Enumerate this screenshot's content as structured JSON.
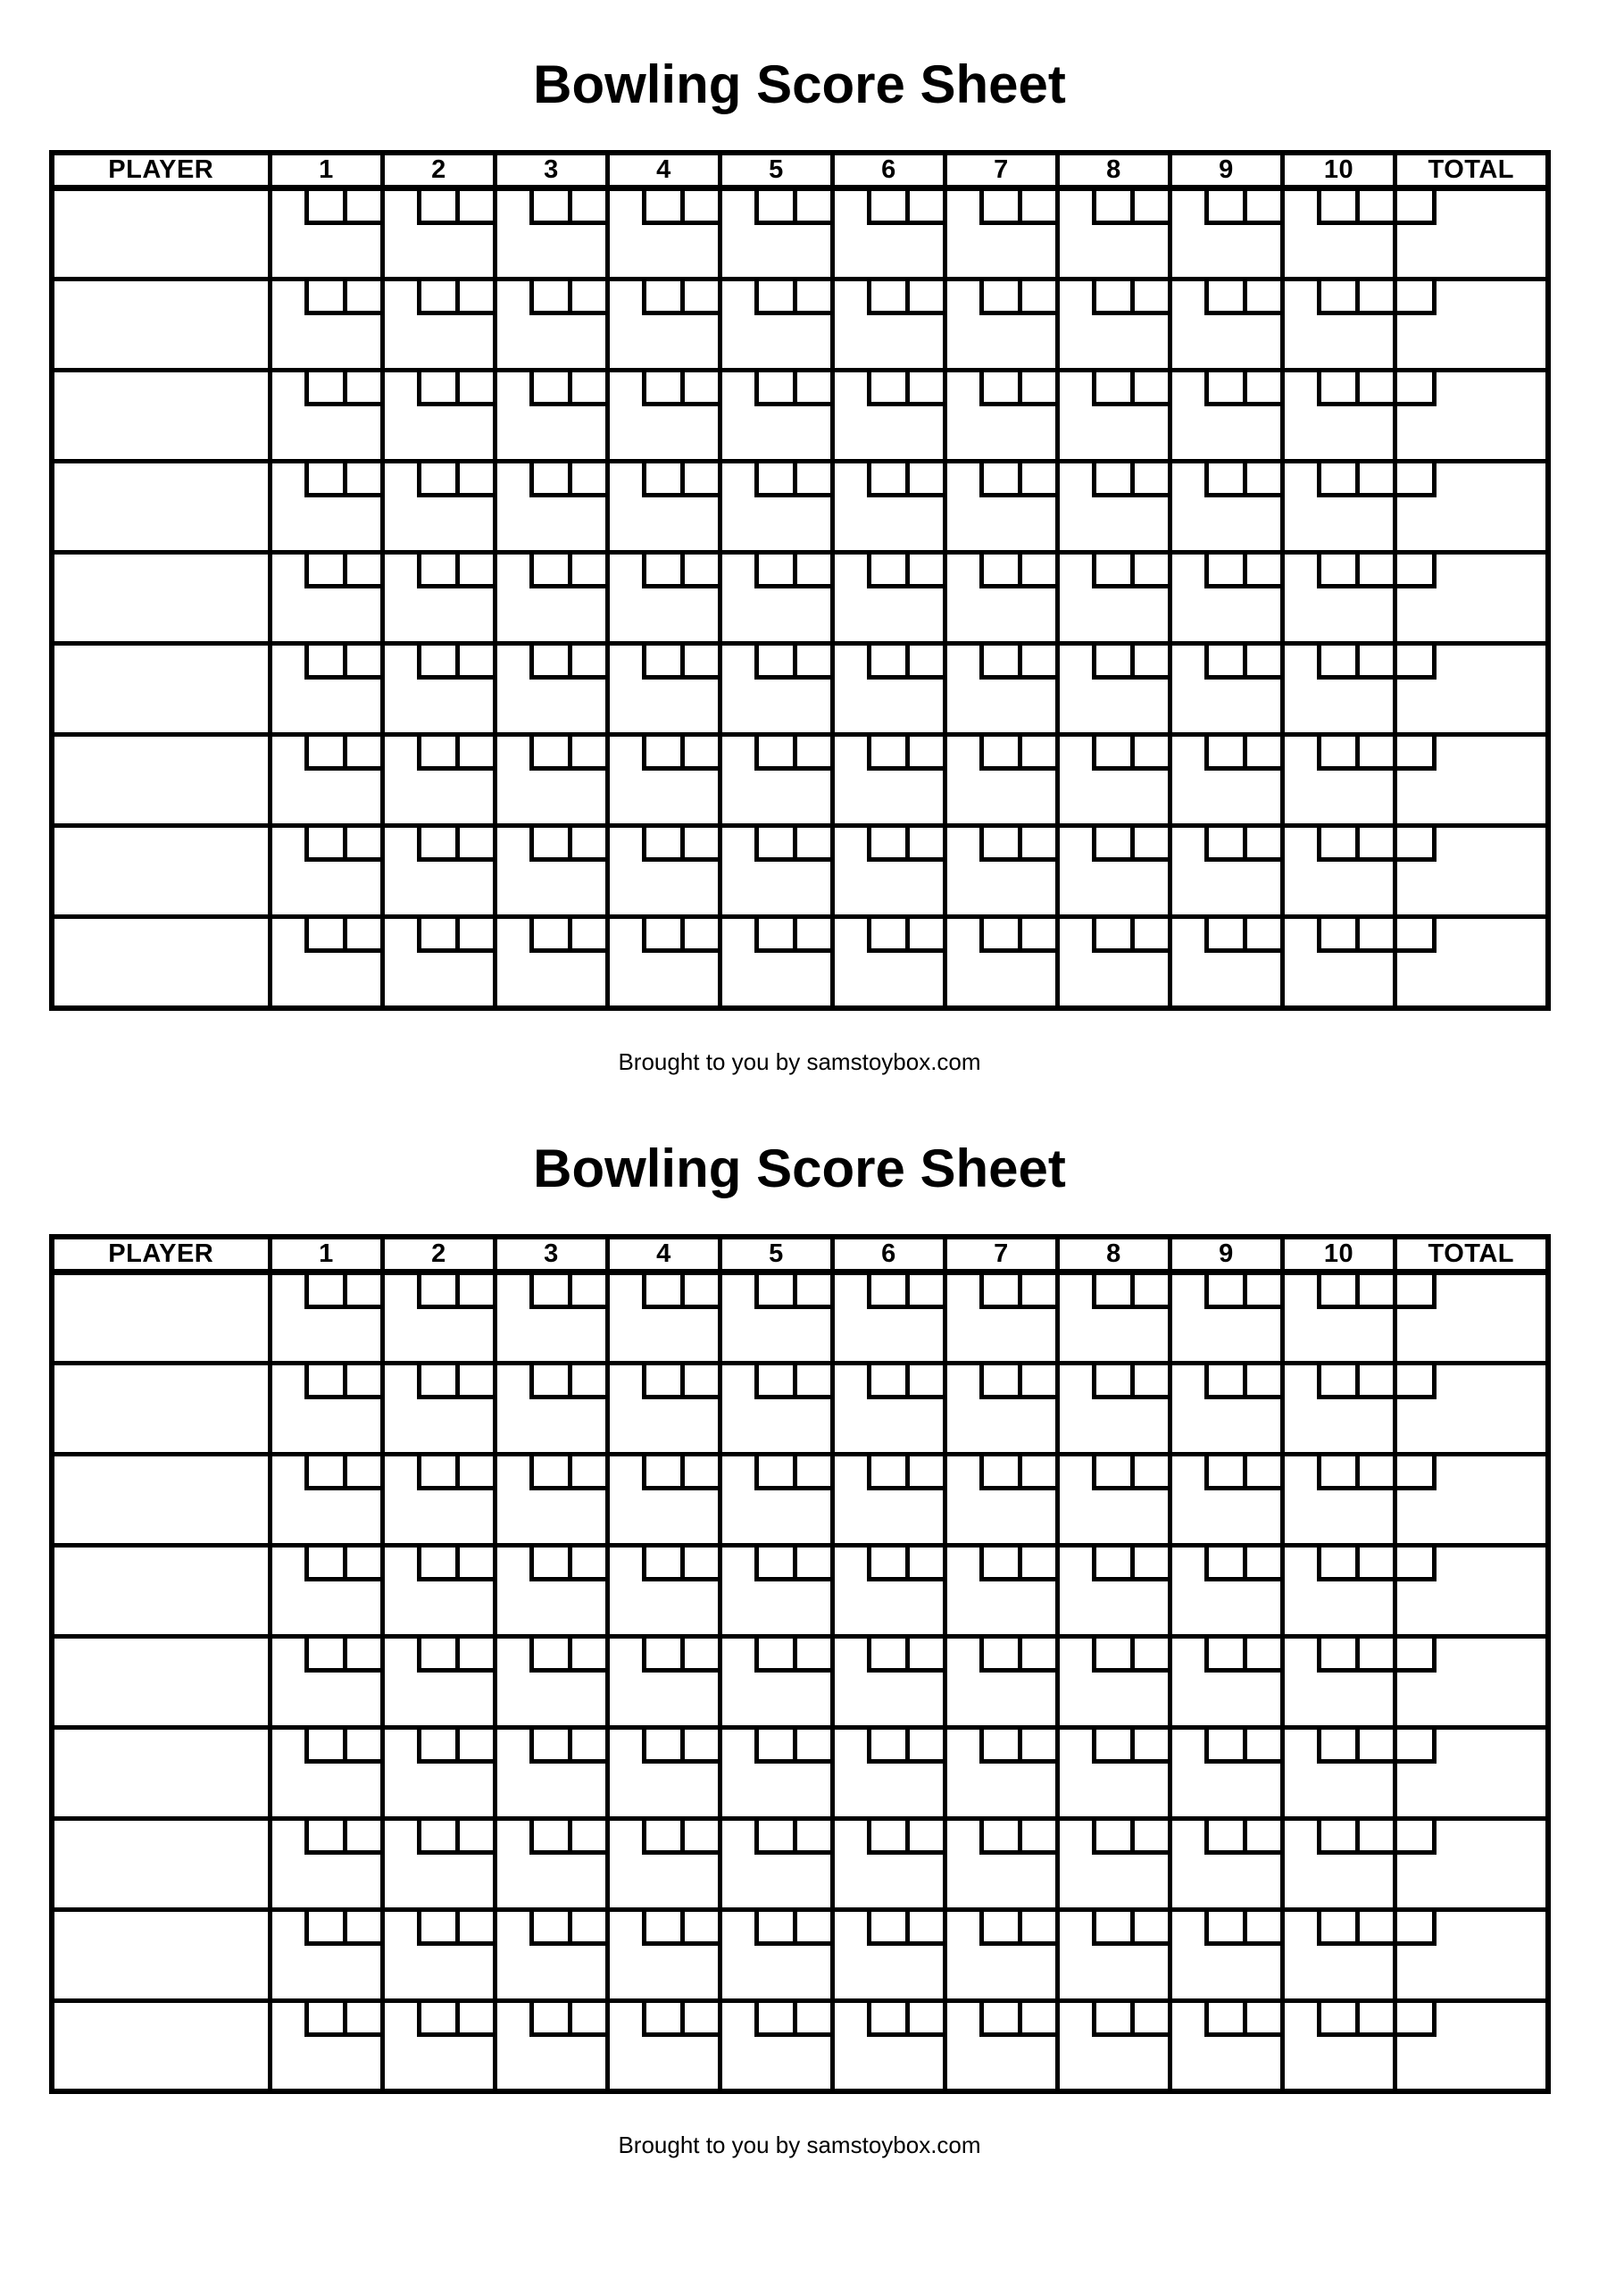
{
  "page": {
    "background_color": "#ffffff",
    "ink_color": "#000000"
  },
  "sheets": [
    {
      "title": "Bowling Score Sheet",
      "header": {
        "player": "PLAYER",
        "frames": [
          "1",
          "2",
          "3",
          "4",
          "5",
          "6",
          "7",
          "8",
          "9",
          "10"
        ],
        "total": "TOTAL"
      },
      "row_count": 9,
      "balls_per_frame": 2,
      "bonus_boxes_in_total_column": 1,
      "credit": "Brought to you by samstoybox.com"
    },
    {
      "title": "Bowling Score Sheet",
      "header": {
        "player": "PLAYER",
        "frames": [
          "1",
          "2",
          "3",
          "4",
          "5",
          "6",
          "7",
          "8",
          "9",
          "10"
        ],
        "total": "TOTAL"
      },
      "row_count": 9,
      "balls_per_frame": 2,
      "bonus_boxes_in_total_column": 1,
      "credit": "Brought to you by samstoybox.com"
    }
  ]
}
